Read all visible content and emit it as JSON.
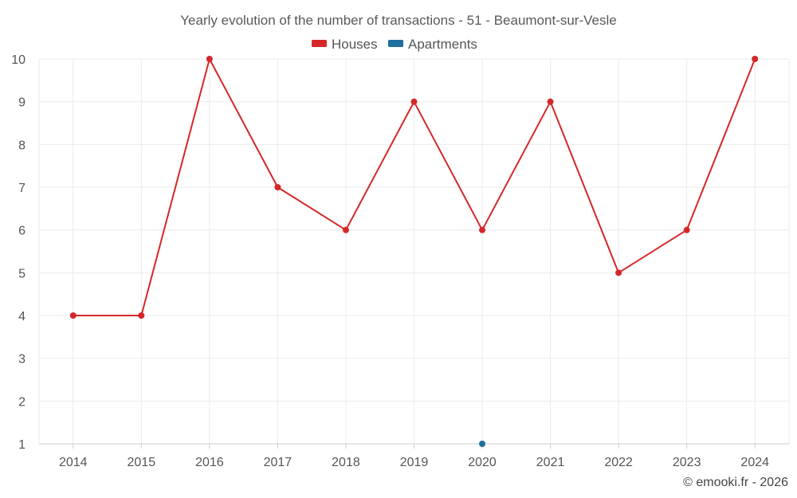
{
  "chart_data": {
    "type": "line",
    "title": "Yearly evolution of the number of transactions - 51 - Beaumont-sur-Vesle",
    "x": [
      "2014",
      "2015",
      "2016",
      "2017",
      "2018",
      "2019",
      "2020",
      "2021",
      "2022",
      "2023",
      "2024"
    ],
    "y_ticks": [
      "1",
      "2",
      "3",
      "4",
      "5",
      "6",
      "7",
      "8",
      "9",
      "10"
    ],
    "ylim": [
      1,
      10
    ],
    "grid": true,
    "legend_position": "top-center",
    "series": [
      {
        "name": "Houses",
        "color": "#d62728",
        "values": [
          4,
          4,
          10,
          7,
          6,
          9,
          6,
          9,
          5,
          6,
          10
        ]
      },
      {
        "name": "Apartments",
        "color": "#1f6fa0",
        "values": [
          null,
          null,
          null,
          null,
          null,
          null,
          1,
          null,
          null,
          null,
          null
        ]
      }
    ]
  },
  "credit": "© emooki.fr - 2026"
}
